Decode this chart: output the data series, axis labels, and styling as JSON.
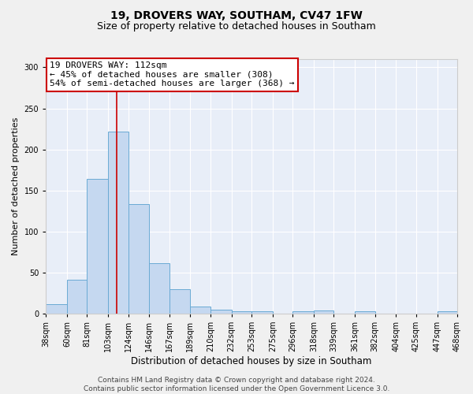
{
  "title1": "19, DROVERS WAY, SOUTHAM, CV47 1FW",
  "title2": "Size of property relative to detached houses in Southam",
  "xlabel": "Distribution of detached houses by size in Southam",
  "ylabel": "Number of detached properties",
  "bar_values": [
    11,
    41,
    164,
    222,
    133,
    61,
    30,
    9,
    5,
    3,
    3,
    0,
    3,
    4,
    0,
    3,
    0,
    0,
    0,
    3
  ],
  "bin_edges": [
    38,
    60,
    81,
    103,
    124,
    146,
    167,
    189,
    210,
    232,
    253,
    275,
    296,
    318,
    339,
    361,
    382,
    404,
    425,
    447,
    468
  ],
  "tick_labels": [
    "38sqm",
    "60sqm",
    "81sqm",
    "103sqm",
    "124sqm",
    "146sqm",
    "167sqm",
    "189sqm",
    "210sqm",
    "232sqm",
    "253sqm",
    "275sqm",
    "296sqm",
    "318sqm",
    "339sqm",
    "361sqm",
    "382sqm",
    "404sqm",
    "425sqm",
    "447sqm",
    "468sqm"
  ],
  "bar_color": "#c5d8f0",
  "bar_edge_color": "#6aaad4",
  "background_color": "#e8eef8",
  "grid_color": "#ffffff",
  "red_line_x": 112,
  "annotation_line1": "19 DROVERS WAY: 112sqm",
  "annotation_line2": "← 45% of detached houses are smaller (308)",
  "annotation_line3": "54% of semi-detached houses are larger (368) →",
  "annotation_box_color": "#ffffff",
  "annotation_box_edge": "#cc0000",
  "ylim": [
    0,
    310
  ],
  "yticks": [
    0,
    50,
    100,
    150,
    200,
    250,
    300
  ],
  "footer_line1": "Contains HM Land Registry data © Crown copyright and database right 2024.",
  "footer_line2": "Contains public sector information licensed under the Open Government Licence 3.0.",
  "title1_fontsize": 10,
  "title2_fontsize": 9,
  "xlabel_fontsize": 8.5,
  "ylabel_fontsize": 8,
  "tick_fontsize": 7,
  "annotation_fontsize": 8,
  "footer_fontsize": 6.5
}
